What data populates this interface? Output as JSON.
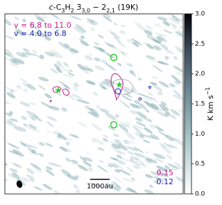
{
  "chart_data": {
    "type": "image",
    "title": [
      "c",
      "-C",
      "3",
      "H",
      "2",
      " 3",
      "3,0",
      " − 2",
      "2,1",
      " (19K)"
    ],
    "legend": [
      {
        "text": "v = 6.8 to 11.0",
        "color": "#c0188c"
      },
      {
        "text": "v = 4.0 to 6.8",
        "color": "#1a1ab8"
      }
    ],
    "contour_levels": [
      {
        "text": "0.15",
        "color": "#c0188c"
      },
      {
        "text": "0.12",
        "color": "#1a1ab8"
      }
    ],
    "scalebar": "1000au",
    "colorbar": {
      "label": [
        "K km s",
        "−1"
      ],
      "clim": [
        0,
        3
      ],
      "ticks": [
        {
          "value": 0,
          "label": "0.0"
        },
        0.5,
        {
          "value": 1,
          "label": "1.0"
        },
        1.5,
        {
          "value": 2,
          "label": "2.0"
        },
        2.5,
        {
          "value": 3,
          "label": "3.0"
        }
      ]
    }
  }
}
